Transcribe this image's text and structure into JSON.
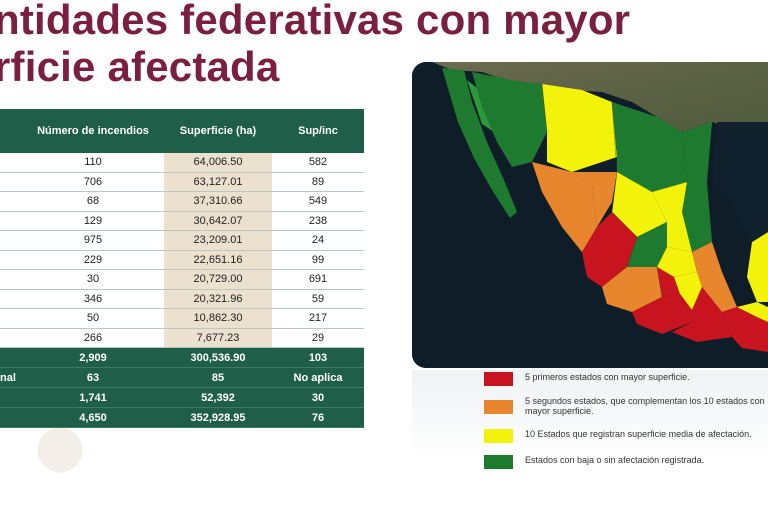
{
  "slide": {
    "title_line1": "ntidades federativas con mayor",
    "title_line2": "rficie afectada"
  },
  "table": {
    "headers": [
      "",
      "Número de incendios",
      "Superficie (ha)",
      "Sup/inc"
    ],
    "rows": [
      {
        "incendios": "110",
        "superficie": "64,006.50",
        "supinc": "582"
      },
      {
        "incendios": "706",
        "superficie": "63,127.01",
        "supinc": "89"
      },
      {
        "incendios": "68",
        "superficie": "37,310.66",
        "supinc": "549"
      },
      {
        "incendios": "129",
        "superficie": "30,642.07",
        "supinc": "238"
      },
      {
        "incendios": "975",
        "superficie": "23,209.01",
        "supinc": "24"
      },
      {
        "incendios": "229",
        "superficie": "22,651.16",
        "supinc": "99"
      },
      {
        "incendios": "30",
        "superficie": "20,729.00",
        "supinc": "691"
      },
      {
        "incendios": "346",
        "superficie": "20,321.96",
        "supinc": "59"
      },
      {
        "incendios": "50",
        "superficie": "10,862.30",
        "supinc": "217"
      },
      {
        "incendios": "266",
        "superficie": "7,677.23",
        "supinc": "29"
      }
    ],
    "totals": [
      {
        "label": "",
        "incendios": "2,909",
        "superficie": "300,536.90",
        "supinc": "103"
      },
      {
        "label": "nal",
        "incendios": "63",
        "superficie": "85",
        "supinc": "No aplica"
      },
      {
        "label": "",
        "incendios": "1,741",
        "superficie": "52,392",
        "supinc": "30"
      },
      {
        "label": "",
        "incendios": "4,650",
        "superficie": "352,928.95",
        "supinc": "76"
      }
    ]
  },
  "legend": [
    {
      "color": "#c8141e",
      "text": "5 primeros estados con mayor superficie."
    },
    {
      "color": "#e8862e",
      "text": "5 segundos estados, que complementan los 10 estados con mayor superficie."
    },
    {
      "color": "#f2f20a",
      "text": "10 Estados que registran superficie media de afectación."
    },
    {
      "color": "#1d7a2e",
      "text": "Estados con baja o sin afectación registrada."
    }
  ],
  "colors": {
    "title": "#7a1f3d",
    "table_header": "#1f5e48",
    "highlight_column": "#ece0cf"
  }
}
